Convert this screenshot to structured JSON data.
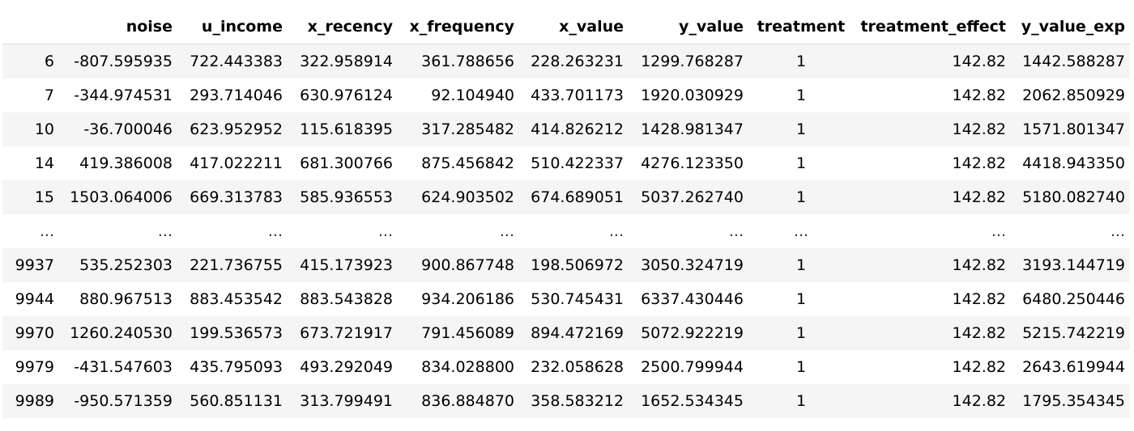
{
  "table": {
    "columns": [
      "",
      "noise",
      "u_income",
      "x_recency",
      "x_frequency",
      "x_value",
      "y_value",
      "treatment",
      "treatment_effect",
      "y_value_exp"
    ],
    "rows": [
      [
        "6",
        "-807.595935",
        "722.443383",
        "322.958914",
        "361.788656",
        "228.263231",
        "1299.768287",
        "1",
        "142.82",
        "1442.588287"
      ],
      [
        "7",
        "-344.974531",
        "293.714046",
        "630.976124",
        "92.104940",
        "433.701173",
        "1920.030929",
        "1",
        "142.82",
        "2062.850929"
      ],
      [
        "10",
        "-36.700046",
        "623.952952",
        "115.618395",
        "317.285482",
        "414.826212",
        "1428.981347",
        "1",
        "142.82",
        "1571.801347"
      ],
      [
        "14",
        "419.386008",
        "417.022211",
        "681.300766",
        "875.456842",
        "510.422337",
        "4276.123350",
        "1",
        "142.82",
        "4418.943350"
      ],
      [
        "15",
        "1503.064006",
        "669.313783",
        "585.936553",
        "624.903502",
        "674.689051",
        "5037.262740",
        "1",
        "142.82",
        "5180.082740"
      ],
      [
        "...",
        "...",
        "...",
        "...",
        "...",
        "...",
        "...",
        "...",
        "...",
        "..."
      ],
      [
        "9937",
        "535.252303",
        "221.736755",
        "415.173923",
        "900.867748",
        "198.506972",
        "3050.324719",
        "1",
        "142.82",
        "3193.144719"
      ],
      [
        "9944",
        "880.967513",
        "883.453542",
        "883.543828",
        "934.206186",
        "530.745431",
        "6337.430446",
        "1",
        "142.82",
        "6480.250446"
      ],
      [
        "9970",
        "1260.240530",
        "199.536573",
        "673.721917",
        "791.456089",
        "894.472169",
        "5072.922219",
        "1",
        "142.82",
        "5215.742219"
      ],
      [
        "9979",
        "-431.547603",
        "435.795093",
        "493.292049",
        "834.028800",
        "232.058628",
        "2500.799944",
        "1",
        "142.82",
        "2643.619944"
      ],
      [
        "9989",
        "-950.571359",
        "560.851131",
        "313.799491",
        "836.884870",
        "358.583212",
        "1652.534345",
        "1",
        "142.82",
        "1795.354345"
      ]
    ]
  }
}
